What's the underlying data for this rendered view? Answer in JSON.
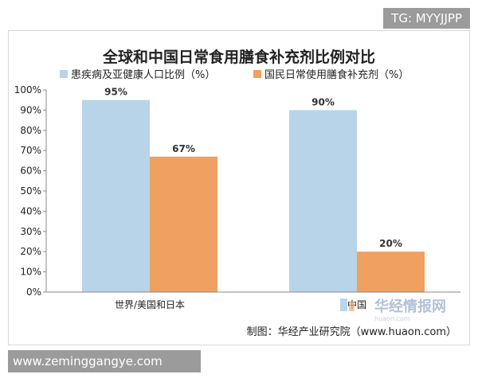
{
  "overlay": {
    "tag": "TG: MYYJJPP",
    "website": "www.zeminggangye.com"
  },
  "chart_data": {
    "type": "bar",
    "title": "全球和中国日常食用膳食补充剂比例对比",
    "categories": [
      "世界/美国和日本",
      "中国"
    ],
    "series": [
      {
        "name": "患疾病及亚健康人口比例（%）",
        "values": [
          95,
          90
        ],
        "labels": [
          "95%",
          "90%"
        ],
        "color": "#b8d4e8"
      },
      {
        "name": "国民日常使用膳食补充剂（%）",
        "values": [
          67,
          20
        ],
        "labels": [
          "67%",
          "20%"
        ],
        "color": "#f0a060"
      }
    ],
    "ylim": [
      0,
      100
    ],
    "yticks": [
      0,
      10,
      20,
      30,
      40,
      50,
      60,
      70,
      80,
      90,
      100
    ],
    "ytick_labels": [
      "0%",
      "10%",
      "20%",
      "30%",
      "40%",
      "50%",
      "60%",
      "70%",
      "80%",
      "90%",
      "100%"
    ],
    "grid": false,
    "legend": "top",
    "source": "制图：华经产业研究院（www.huaon.com）",
    "watermark": "华经情报网"
  }
}
